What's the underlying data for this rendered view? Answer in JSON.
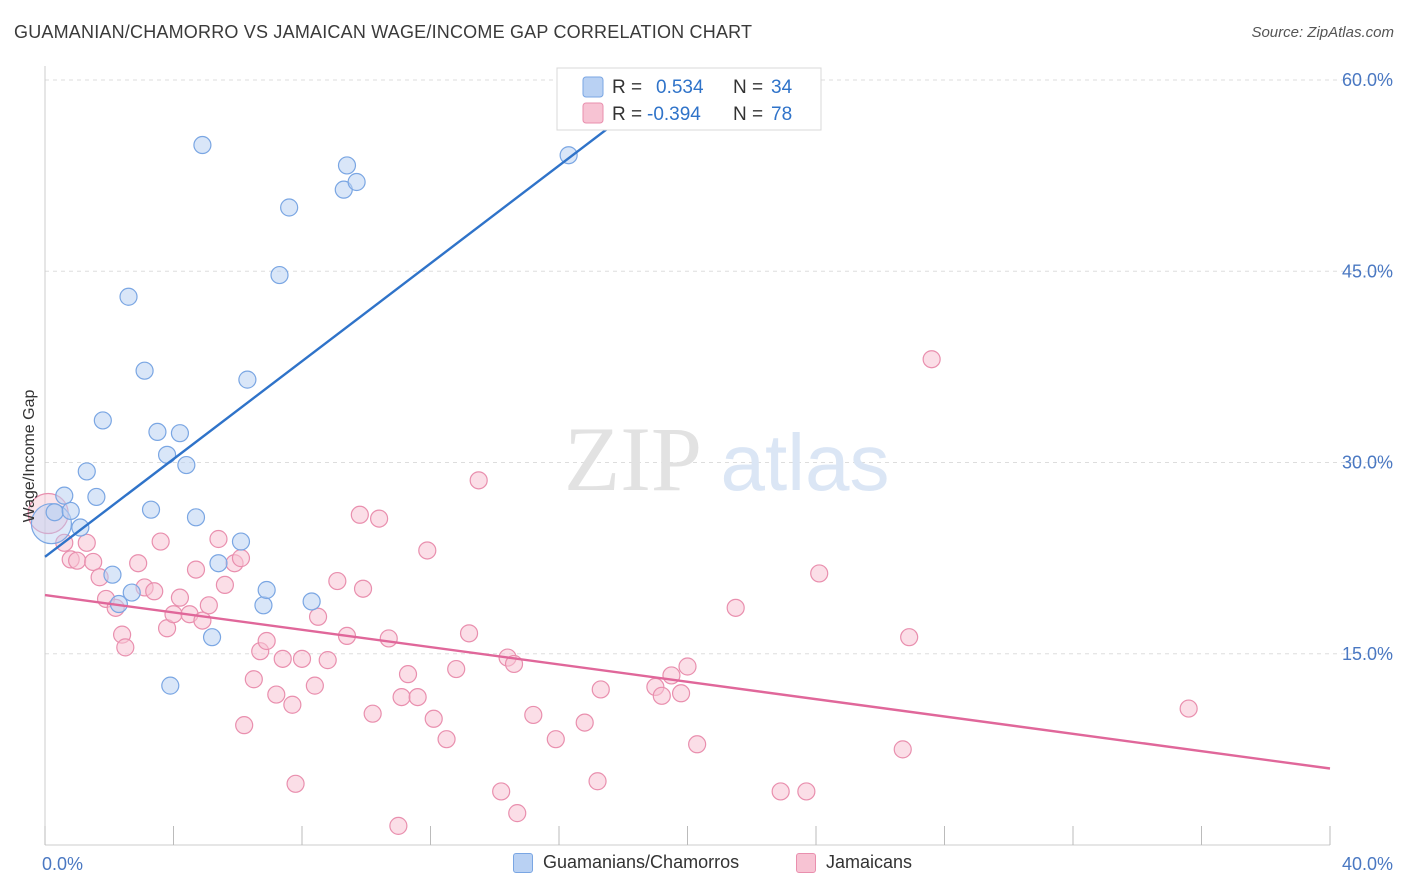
{
  "title": "GUAMANIAN/CHAMORRO VS JAMAICAN WAGE/INCOME GAP CORRELATION CHART",
  "source": "Source: ZipAtlas.com",
  "watermark": {
    "zip": "ZIP",
    "atlas": "atlas"
  },
  "colors": {
    "blue_fill": "#b9d1f3",
    "blue_stroke": "#7aa6e3",
    "blue_line": "#2f73c9",
    "pink_fill": "#f7c3d3",
    "pink_stroke": "#e98fae",
    "pink_line": "#e0679a",
    "tick_text": "#4a78c2",
    "grid": "#dddddd"
  },
  "legend": {
    "rows": [
      {
        "r_label": "R =",
        "r_value": "0.534",
        "n_label": "N =",
        "n_value": "34"
      },
      {
        "r_label": "R =",
        "r_value": "-0.394",
        "n_label": "N =",
        "n_value": "78"
      }
    ]
  },
  "bottom_legend": {
    "items": [
      {
        "label": "Guamanians/Chamorros"
      },
      {
        "label": "Jamaicans"
      }
    ]
  },
  "chart_data": {
    "type": "scatter",
    "title": "GUAMANIAN/CHAMORRO VS JAMAICAN WAGE/INCOME GAP CORRELATION CHART",
    "ylabel": "Wage/Income Gap",
    "xlabel": "",
    "xlim": [
      0,
      40
    ],
    "ylim": [
      0,
      60
    ],
    "x_tick_labels": [
      "0.0%",
      "40.0%"
    ],
    "y_ticks": [
      15,
      30,
      45,
      60
    ],
    "y_tick_labels": [
      "15.0%",
      "30.0%",
      "45.0%",
      "60.0%"
    ],
    "grid": true,
    "legend_placement": "top-center",
    "series": [
      {
        "name": "Guamanians/Chamorros",
        "r": 0.534,
        "n": 34,
        "trend": {
          "x": [
            0,
            19.5
          ],
          "y": [
            22.6,
            60.0
          ]
        },
        "points": [
          {
            "x": 0.2,
            "y": 25.2,
            "big": true
          },
          {
            "x": 0.3,
            "y": 26.1
          },
          {
            "x": 0.6,
            "y": 27.4
          },
          {
            "x": 0.8,
            "y": 26.2
          },
          {
            "x": 1.1,
            "y": 24.9
          },
          {
            "x": 1.3,
            "y": 29.3
          },
          {
            "x": 1.6,
            "y": 27.3
          },
          {
            "x": 1.8,
            "y": 33.3
          },
          {
            "x": 2.1,
            "y": 21.2
          },
          {
            "x": 2.3,
            "y": 18.9
          },
          {
            "x": 2.6,
            "y": 43.0
          },
          {
            "x": 2.7,
            "y": 19.8
          },
          {
            "x": 3.1,
            "y": 37.2
          },
          {
            "x": 3.3,
            "y": 26.3
          },
          {
            "x": 3.5,
            "y": 32.4
          },
          {
            "x": 3.8,
            "y": 30.6
          },
          {
            "x": 3.9,
            "y": 12.5
          },
          {
            "x": 4.2,
            "y": 32.3
          },
          {
            "x": 4.4,
            "y": 29.8
          },
          {
            "x": 4.7,
            "y": 25.7
          },
          {
            "x": 4.9,
            "y": 54.9
          },
          {
            "x": 5.2,
            "y": 16.3
          },
          {
            "x": 5.4,
            "y": 22.1
          },
          {
            "x": 6.1,
            "y": 23.8
          },
          {
            "x": 6.3,
            "y": 36.5
          },
          {
            "x": 6.8,
            "y": 18.8
          },
          {
            "x": 6.9,
            "y": 20.0
          },
          {
            "x": 7.3,
            "y": 44.7
          },
          {
            "x": 7.6,
            "y": 50.0
          },
          {
            "x": 8.3,
            "y": 19.1
          },
          {
            "x": 9.3,
            "y": 51.4
          },
          {
            "x": 9.4,
            "y": 53.3
          },
          {
            "x": 9.7,
            "y": 52.0
          },
          {
            "x": 16.3,
            "y": 54.1
          }
        ]
      },
      {
        "name": "Jamaicans",
        "r": -0.394,
        "n": 78,
        "trend": {
          "x": [
            0,
            40
          ],
          "y": [
            19.6,
            6.0
          ]
        },
        "points": [
          {
            "x": 0.1,
            "y": 26.0,
            "big": true
          },
          {
            "x": 0.6,
            "y": 23.7
          },
          {
            "x": 0.8,
            "y": 22.4
          },
          {
            "x": 1.0,
            "y": 22.3
          },
          {
            "x": 1.3,
            "y": 23.7
          },
          {
            "x": 1.5,
            "y": 22.2
          },
          {
            "x": 1.7,
            "y": 21.0
          },
          {
            "x": 1.9,
            "y": 19.3
          },
          {
            "x": 2.2,
            "y": 18.6
          },
          {
            "x": 2.4,
            "y": 16.5
          },
          {
            "x": 2.5,
            "y": 15.5
          },
          {
            "x": 2.9,
            "y": 22.1
          },
          {
            "x": 3.1,
            "y": 20.2
          },
          {
            "x": 3.4,
            "y": 19.9
          },
          {
            "x": 3.6,
            "y": 23.8
          },
          {
            "x": 3.8,
            "y": 17.0
          },
          {
            "x": 4.0,
            "y": 18.1
          },
          {
            "x": 4.2,
            "y": 19.4
          },
          {
            "x": 4.5,
            "y": 18.1
          },
          {
            "x": 4.7,
            "y": 21.6
          },
          {
            "x": 4.9,
            "y": 17.6
          },
          {
            "x": 5.1,
            "y": 18.8
          },
          {
            "x": 5.4,
            "y": 24.0
          },
          {
            "x": 5.6,
            "y": 20.4
          },
          {
            "x": 5.9,
            "y": 22.1
          },
          {
            "x": 6.1,
            "y": 22.5
          },
          {
            "x": 6.2,
            "y": 9.4
          },
          {
            "x": 6.5,
            "y": 13.0
          },
          {
            "x": 6.7,
            "y": 15.2
          },
          {
            "x": 6.9,
            "y": 16.0
          },
          {
            "x": 7.2,
            "y": 11.8
          },
          {
            "x": 7.4,
            "y": 14.6
          },
          {
            "x": 7.7,
            "y": 11.0
          },
          {
            "x": 7.8,
            "y": 4.8
          },
          {
            "x": 8.0,
            "y": 14.6
          },
          {
            "x": 8.4,
            "y": 12.5
          },
          {
            "x": 8.5,
            "y": 17.9
          },
          {
            "x": 8.8,
            "y": 14.5
          },
          {
            "x": 9.1,
            "y": 20.7
          },
          {
            "x": 9.4,
            "y": 16.4
          },
          {
            "x": 9.8,
            "y": 25.9
          },
          {
            "x": 9.9,
            "y": 20.1
          },
          {
            "x": 10.2,
            "y": 10.3
          },
          {
            "x": 10.4,
            "y": 25.6
          },
          {
            "x": 10.7,
            "y": 16.2
          },
          {
            "x": 11.0,
            "y": 1.5
          },
          {
            "x": 11.1,
            "y": 11.6
          },
          {
            "x": 11.3,
            "y": 13.4
          },
          {
            "x": 11.6,
            "y": 11.6
          },
          {
            "x": 11.9,
            "y": 23.1
          },
          {
            "x": 12.1,
            "y": 9.9
          },
          {
            "x": 12.5,
            "y": 8.3
          },
          {
            "x": 12.8,
            "y": 13.8
          },
          {
            "x": 13.2,
            "y": 16.6
          },
          {
            "x": 13.5,
            "y": 28.6
          },
          {
            "x": 14.2,
            "y": 4.2
          },
          {
            "x": 14.4,
            "y": 14.7
          },
          {
            "x": 14.6,
            "y": 14.2
          },
          {
            "x": 14.7,
            "y": 2.5
          },
          {
            "x": 15.2,
            "y": 10.2
          },
          {
            "x": 15.9,
            "y": 8.3
          },
          {
            "x": 16.8,
            "y": 9.6
          },
          {
            "x": 17.2,
            "y": 5.0
          },
          {
            "x": 17.3,
            "y": 12.2
          },
          {
            "x": 19.0,
            "y": 12.4
          },
          {
            "x": 19.2,
            "y": 11.7
          },
          {
            "x": 19.5,
            "y": 13.3
          },
          {
            "x": 19.8,
            "y": 11.9
          },
          {
            "x": 20.0,
            "y": 14.0
          },
          {
            "x": 20.3,
            "y": 7.9
          },
          {
            "x": 21.5,
            "y": 18.6
          },
          {
            "x": 22.9,
            "y": 4.2
          },
          {
            "x": 23.7,
            "y": 4.2
          },
          {
            "x": 24.1,
            "y": 21.3
          },
          {
            "x": 26.7,
            "y": 7.5
          },
          {
            "x": 26.9,
            "y": 16.3
          },
          {
            "x": 27.6,
            "y": 38.1
          },
          {
            "x": 35.6,
            "y": 10.7
          }
        ]
      }
    ]
  }
}
